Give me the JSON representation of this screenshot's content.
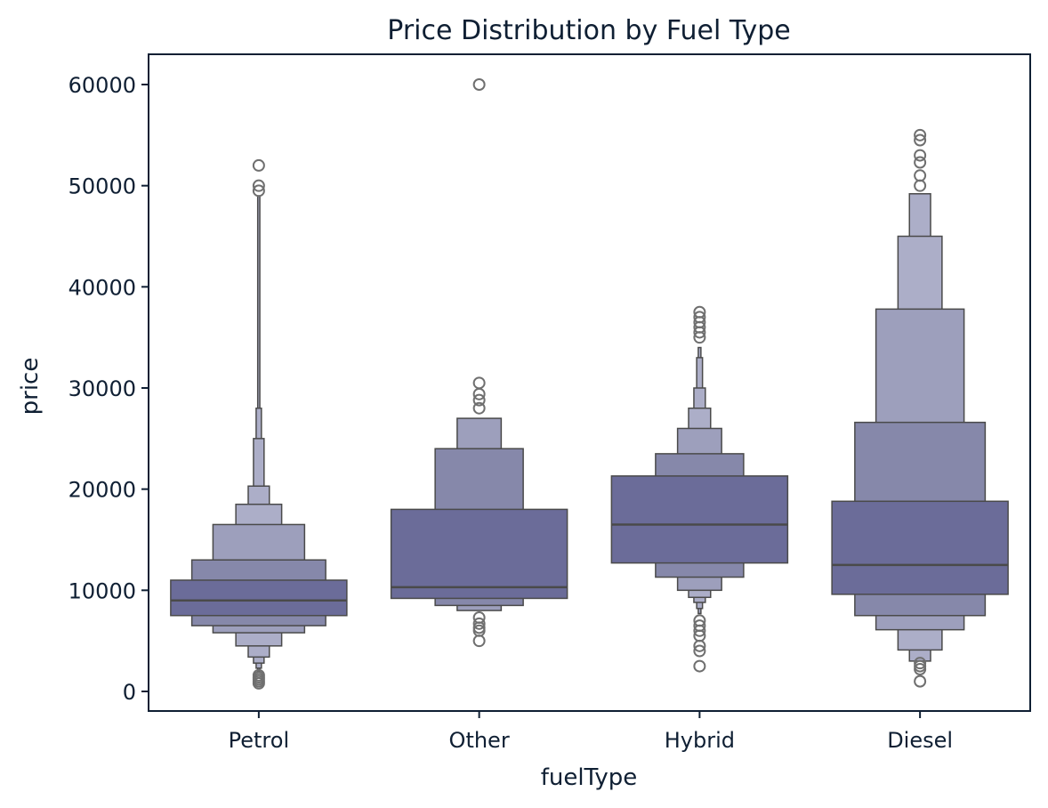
{
  "chart_data": {
    "type": "boxenplot",
    "title": "Price Distribution by Fuel Type",
    "xlabel": "fuelType",
    "ylabel": "price",
    "ylim": [
      -2000,
      63000
    ],
    "yticks": [
      0,
      10000,
      20000,
      30000,
      40000,
      50000,
      60000
    ],
    "grid": false,
    "colors": {
      "level1": "#6b6c99",
      "level2": "#8688aa",
      "level3": "#9d9fbc",
      "level4": "#acaec8",
      "edge": "#4a4a4a",
      "outlier": "#6f6f6f",
      "frame": "#0f1f33"
    },
    "categories": [
      "Petrol",
      "Other",
      "Hybrid",
      "Diesel"
    ],
    "boxes": [
      {
        "category": "Petrol",
        "median": 9000,
        "levels": [
          {
            "low": 7500,
            "high": 11000,
            "width": 1.0
          },
          {
            "low": 6500,
            "high": 13000,
            "width": 0.76
          },
          {
            "low": 5800,
            "high": 16500,
            "width": 0.52
          },
          {
            "low": 4500,
            "high": 18500,
            "width": 0.26
          },
          {
            "low": 3400,
            "high": 20300,
            "width": 0.12
          },
          {
            "low": 2800,
            "high": 25000,
            "width": 0.06
          },
          {
            "low": 2300,
            "high": 28000,
            "width": 0.03
          },
          {
            "low": 2000,
            "high": 49000,
            "width": 0.012
          }
        ],
        "outliers": [
          800,
          1000,
          1200,
          1400,
          1600,
          49500,
          50000,
          52000
        ]
      },
      {
        "category": "Other",
        "median": 10300,
        "levels": [
          {
            "low": 9200,
            "high": 18000,
            "width": 1.0
          },
          {
            "low": 8500,
            "high": 24000,
            "width": 0.5
          },
          {
            "low": 8000,
            "high": 27000,
            "width": 0.25
          }
        ],
        "outliers": [
          5000,
          6000,
          6300,
          6700,
          7300,
          28000,
          28800,
          29400,
          30500,
          60000
        ]
      },
      {
        "category": "Hybrid",
        "median": 16500,
        "levels": [
          {
            "low": 12700,
            "high": 21300,
            "width": 1.0
          },
          {
            "low": 11300,
            "high": 23500,
            "width": 0.5
          },
          {
            "low": 10000,
            "high": 26000,
            "width": 0.25
          },
          {
            "low": 9300,
            "high": 28000,
            "width": 0.125
          },
          {
            "low": 8800,
            "high": 30000,
            "width": 0.065
          },
          {
            "low": 8200,
            "high": 33000,
            "width": 0.033
          },
          {
            "low": 7700,
            "high": 34000,
            "width": 0.015
          }
        ],
        "outliers": [
          2500,
          4000,
          4500,
          5500,
          6000,
          6500,
          7000,
          35000,
          35500,
          36000,
          36500,
          37000,
          37500
        ]
      },
      {
        "category": "Diesel",
        "median": 12500,
        "levels": [
          {
            "low": 9600,
            "high": 18800,
            "width": 1.0
          },
          {
            "low": 7500,
            "high": 26600,
            "width": 0.74
          },
          {
            "low": 6100,
            "high": 37800,
            "width": 0.5
          },
          {
            "low": 4100,
            "high": 45000,
            "width": 0.25
          },
          {
            "low": 3000,
            "high": 49200,
            "width": 0.12
          }
        ],
        "outliers": [
          1000,
          2200,
          2500,
          2800,
          50000,
          51000,
          52300,
          53000,
          54500,
          55000
        ]
      }
    ]
  }
}
